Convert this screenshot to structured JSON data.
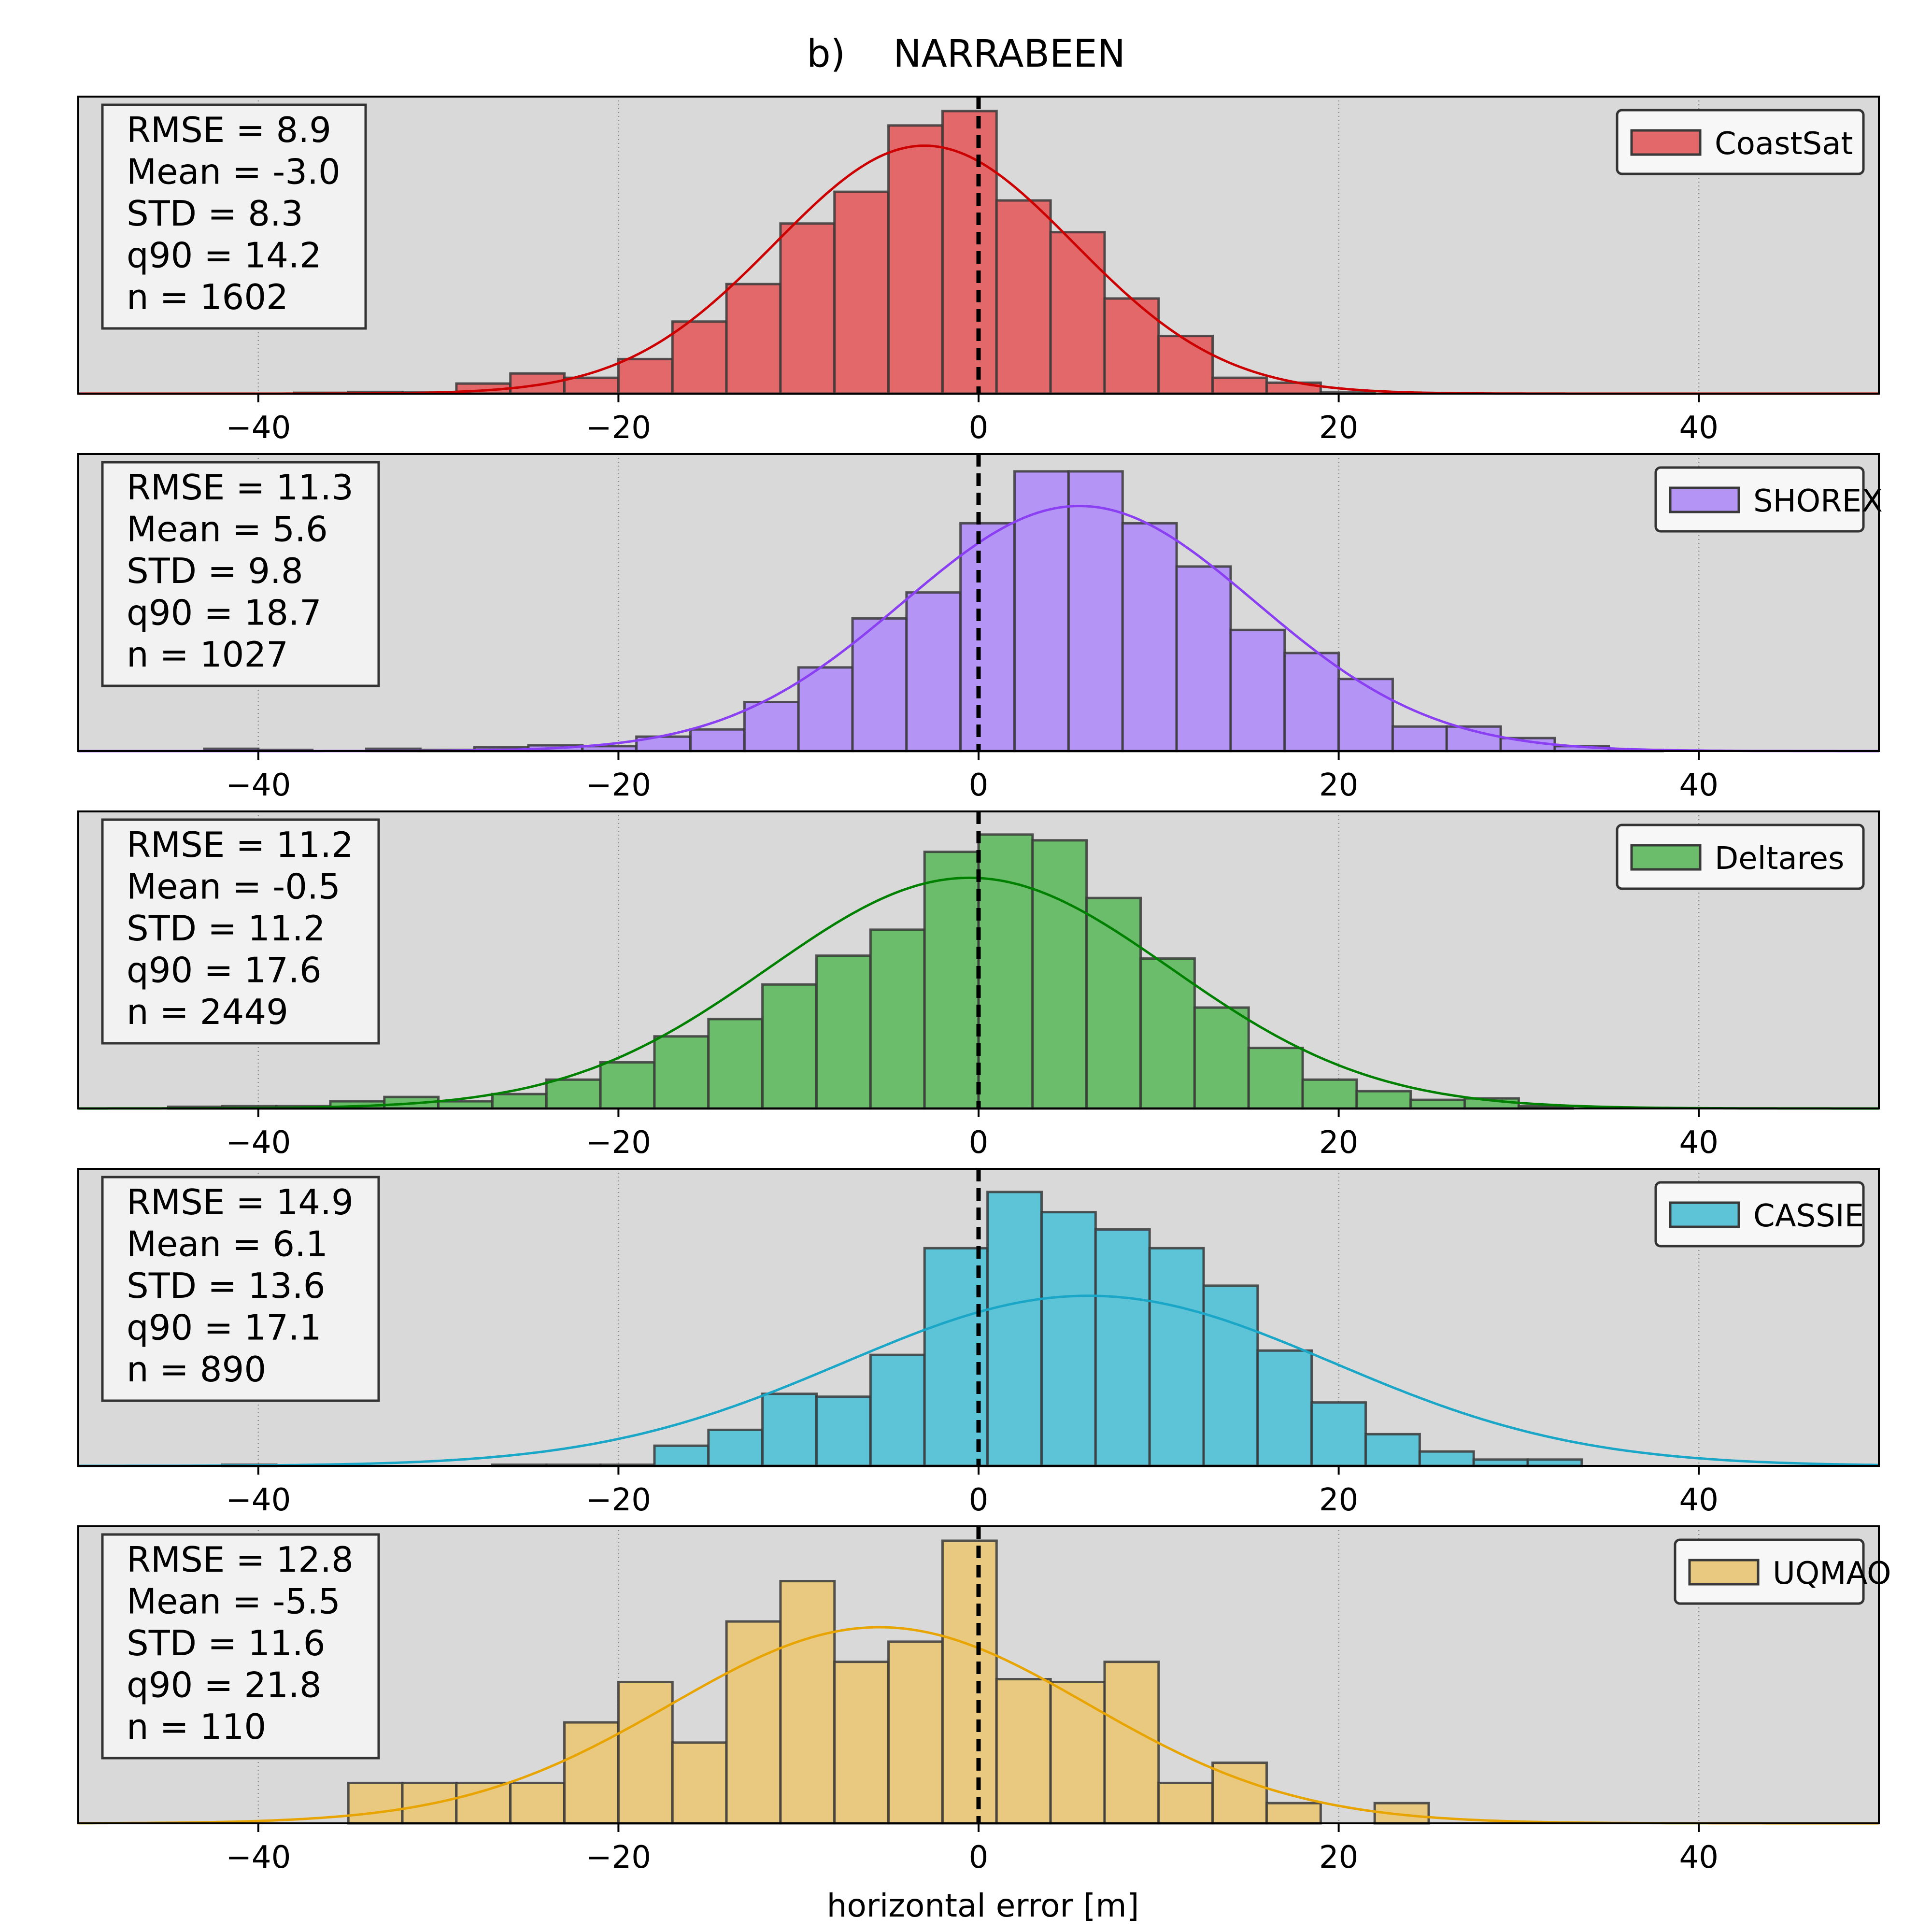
{
  "figure": {
    "title": "b)    NARRABEEN",
    "xlabel": "horizontal error [m]"
  },
  "chart_data": [
    {
      "type": "bar",
      "name": "CoastSat",
      "color": "#d62728",
      "fit_color": "#cc0000",
      "xlim": [
        -50,
        50
      ],
      "xticks": [
        -40,
        -20,
        0,
        20,
        40
      ],
      "xtick_labels": [
        "−40",
        "−20",
        "0",
        "20",
        "40"
      ],
      "grid_x": [
        -40,
        -20,
        20,
        40
      ],
      "grid": true,
      "vline_x": 0,
      "legend_position": "top-right",
      "stats": [
        "RMSE = 8.9",
        "Mean = -3.0",
        "STD = 8.3",
        "q90 = 14.2",
        "n = 1602"
      ],
      "fit": {
        "mean": -3.0,
        "std": 8.3,
        "peak": 0.86
      },
      "bins": [
        {
          "x0": -38,
          "x1": -35,
          "h": 0.003
        },
        {
          "x0": -35,
          "x1": -32,
          "h": 0.006
        },
        {
          "x0": -32,
          "x1": -29,
          "h": 0.004
        },
        {
          "x0": -29,
          "x1": -26,
          "h": 0.035
        },
        {
          "x0": -26,
          "x1": -23,
          "h": 0.07
        },
        {
          "x0": -23,
          "x1": -20,
          "h": 0.055
        },
        {
          "x0": -20,
          "x1": -17,
          "h": 0.12
        },
        {
          "x0": -17,
          "x1": -14,
          "h": 0.25
        },
        {
          "x0": -14,
          "x1": -11,
          "h": 0.38
        },
        {
          "x0": -11,
          "x1": -8,
          "h": 0.59
        },
        {
          "x0": -8,
          "x1": -5,
          "h": 0.7
        },
        {
          "x0": -5,
          "x1": -2,
          "h": 0.93
        },
        {
          "x0": -2,
          "x1": 1,
          "h": 0.98
        },
        {
          "x0": 1,
          "x1": 4,
          "h": 0.67
        },
        {
          "x0": 4,
          "x1": 7,
          "h": 0.56
        },
        {
          "x0": 7,
          "x1": 10,
          "h": 0.33
        },
        {
          "x0": 10,
          "x1": 13,
          "h": 0.2
        },
        {
          "x0": 13,
          "x1": 16,
          "h": 0.055
        },
        {
          "x0": 16,
          "x1": 19,
          "h": 0.038
        },
        {
          "x0": 19,
          "x1": 22,
          "h": 0.004
        }
      ]
    },
    {
      "type": "bar",
      "name": "SHOREX",
      "color": "#9467f0",
      "fit_color": "#8a3ff2",
      "xlim": [
        -50,
        50
      ],
      "xticks": [
        -40,
        -20,
        0,
        20,
        40
      ],
      "xtick_labels": [
        "−40",
        "−20",
        "0",
        "20",
        "40"
      ],
      "grid_x": [
        -40,
        -20,
        20,
        40
      ],
      "grid": true,
      "vline_x": 0,
      "legend_position": "top-right",
      "stats": [
        "RMSE = 11.3",
        "Mean = 5.6",
        "STD = 9.8",
        "q90 = 18.7",
        "n = 1027"
      ],
      "fit": {
        "mean": 5.6,
        "std": 9.8,
        "peak": 0.85
      },
      "bins": [
        {
          "x0": -43,
          "x1": -40,
          "h": 0.008
        },
        {
          "x0": -40,
          "x1": -37,
          "h": 0.004
        },
        {
          "x0": -34,
          "x1": -31,
          "h": 0.008
        },
        {
          "x0": -31,
          "x1": -28,
          "h": 0.004
        },
        {
          "x0": -28,
          "x1": -25,
          "h": 0.013
        },
        {
          "x0": -25,
          "x1": -22,
          "h": 0.02
        },
        {
          "x0": -22,
          "x1": -19,
          "h": 0.017
        },
        {
          "x0": -19,
          "x1": -16,
          "h": 0.05
        },
        {
          "x0": -16,
          "x1": -13,
          "h": 0.075
        },
        {
          "x0": -13,
          "x1": -10,
          "h": 0.17
        },
        {
          "x0": -10,
          "x1": -7,
          "h": 0.29
        },
        {
          "x0": -7,
          "x1": -4,
          "h": 0.46
        },
        {
          "x0": -4,
          "x1": -1,
          "h": 0.55
        },
        {
          "x0": -1,
          "x1": 2,
          "h": 0.79
        },
        {
          "x0": 2,
          "x1": 5,
          "h": 0.97
        },
        {
          "x0": 5,
          "x1": 8,
          "h": 0.97
        },
        {
          "x0": 8,
          "x1": 11,
          "h": 0.79
        },
        {
          "x0": 11,
          "x1": 14,
          "h": 0.64
        },
        {
          "x0": 14,
          "x1": 17,
          "h": 0.42
        },
        {
          "x0": 17,
          "x1": 20,
          "h": 0.34
        },
        {
          "x0": 20,
          "x1": 23,
          "h": 0.25
        },
        {
          "x0": 23,
          "x1": 26,
          "h": 0.085
        },
        {
          "x0": 26,
          "x1": 29,
          "h": 0.085
        },
        {
          "x0": 29,
          "x1": 32,
          "h": 0.045
        },
        {
          "x0": 32,
          "x1": 35,
          "h": 0.017
        },
        {
          "x0": 35,
          "x1": 38,
          "h": 0.004
        }
      ]
    },
    {
      "type": "bar",
      "name": "Deltares",
      "color": "#2ca02c",
      "fit_color": "#008000",
      "xlim": [
        -50,
        50
      ],
      "xticks": [
        -40,
        -20,
        0,
        20,
        40
      ],
      "xtick_labels": [
        "−40",
        "−20",
        "0",
        "20",
        "40"
      ],
      "grid_x": [
        -40,
        -20,
        20,
        40
      ],
      "grid": true,
      "vline_x": 0,
      "legend_position": "top-right",
      "stats": [
        "RMSE = 11.2",
        "Mean = -0.5",
        "STD = 11.2",
        "q90 = 17.6",
        "n = 2449"
      ],
      "fit": {
        "mean": -0.5,
        "std": 11.2,
        "peak": 0.8
      },
      "bins": [
        {
          "x0": -45,
          "x1": -42,
          "h": 0.006
        },
        {
          "x0": -42,
          "x1": -39,
          "h": 0.008
        },
        {
          "x0": -39,
          "x1": -36,
          "h": 0.008
        },
        {
          "x0": -36,
          "x1": -33,
          "h": 0.025
        },
        {
          "x0": -33,
          "x1": -30,
          "h": 0.04
        },
        {
          "x0": -30,
          "x1": -27,
          "h": 0.025
        },
        {
          "x0": -27,
          "x1": -24,
          "h": 0.05
        },
        {
          "x0": -24,
          "x1": -21,
          "h": 0.1
        },
        {
          "x0": -21,
          "x1": -18,
          "h": 0.16
        },
        {
          "x0": -18,
          "x1": -15,
          "h": 0.25
        },
        {
          "x0": -15,
          "x1": -12,
          "h": 0.31
        },
        {
          "x0": -12,
          "x1": -9,
          "h": 0.43
        },
        {
          "x0": -9,
          "x1": -6,
          "h": 0.53
        },
        {
          "x0": -6,
          "x1": -3,
          "h": 0.62
        },
        {
          "x0": -3,
          "x1": 0,
          "h": 0.89
        },
        {
          "x0": 0,
          "x1": 3,
          "h": 0.95
        },
        {
          "x0": 3,
          "x1": 6,
          "h": 0.93
        },
        {
          "x0": 6,
          "x1": 9,
          "h": 0.73
        },
        {
          "x0": 9,
          "x1": 12,
          "h": 0.52
        },
        {
          "x0": 12,
          "x1": 15,
          "h": 0.35
        },
        {
          "x0": 15,
          "x1": 18,
          "h": 0.21
        },
        {
          "x0": 18,
          "x1": 21,
          "h": 0.1
        },
        {
          "x0": 21,
          "x1": 24,
          "h": 0.06
        },
        {
          "x0": 24,
          "x1": 27,
          "h": 0.03
        },
        {
          "x0": 27,
          "x1": 30,
          "h": 0.035
        },
        {
          "x0": 30,
          "x1": 33,
          "h": 0.008
        }
      ]
    },
    {
      "type": "bar",
      "name": "CASSIE",
      "color": "#17a9c4",
      "fit_color": "#1aa6c6",
      "xlim": [
        -50,
        50
      ],
      "xticks": [
        -40,
        -20,
        0,
        20,
        40
      ],
      "xtick_labels": [
        "−40",
        "−20",
        "0",
        "20",
        "40"
      ],
      "grid_x": [
        -40,
        -20,
        20,
        40
      ],
      "grid": true,
      "vline_x": 0,
      "legend_position": "top-right",
      "stats": [
        "RMSE = 14.9",
        "Mean = 6.1",
        "STD = 13.6",
        "q90 = 17.1",
        "n = 890"
      ],
      "fit": {
        "mean": 6.1,
        "std": 13.6,
        "peak": 0.59
      },
      "bins": [
        {
          "x0": -42,
          "x1": -39,
          "h": 0.004
        },
        {
          "x0": -27,
          "x1": -24,
          "h": 0.004
        },
        {
          "x0": -24,
          "x1": -21,
          "h": 0.004
        },
        {
          "x0": -21,
          "x1": -18,
          "h": 0.004
        },
        {
          "x0": -18,
          "x1": -15,
          "h": 0.07
        },
        {
          "x0": -15,
          "x1": -12,
          "h": 0.125
        },
        {
          "x0": -12,
          "x1": -9,
          "h": 0.25
        },
        {
          "x0": -9,
          "x1": -6,
          "h": 0.24
        },
        {
          "x0": -6,
          "x1": -3,
          "h": 0.385
        },
        {
          "x0": -3,
          "x1": 0.5,
          "h": 0.755
        },
        {
          "x0": 0.5,
          "x1": 3.5,
          "h": 0.95
        },
        {
          "x0": 3.5,
          "x1": 6.5,
          "h": 0.88
        },
        {
          "x0": 6.5,
          "x1": 9.5,
          "h": 0.82
        },
        {
          "x0": 9.5,
          "x1": 12.5,
          "h": 0.755
        },
        {
          "x0": 12.5,
          "x1": 15.5,
          "h": 0.625
        },
        {
          "x0": 15.5,
          "x1": 18.5,
          "h": 0.4
        },
        {
          "x0": 18.5,
          "x1": 21.5,
          "h": 0.22
        },
        {
          "x0": 21.5,
          "x1": 24.5,
          "h": 0.11
        },
        {
          "x0": 24.5,
          "x1": 27.5,
          "h": 0.05
        },
        {
          "x0": 27.5,
          "x1": 30.5,
          "h": 0.022
        },
        {
          "x0": 30.5,
          "x1": 33.5,
          "h": 0.022
        }
      ]
    },
    {
      "type": "bar",
      "name": "UQMAO",
      "color": "#e0b14a",
      "fit_color": "#e8a400",
      "xlim": [
        -50,
        50
      ],
      "xticks": [
        -40,
        -20,
        0,
        20,
        40
      ],
      "xtick_labels": [
        "−40",
        "−20",
        "0",
        "20",
        "40"
      ],
      "grid_x": [
        -40,
        -20,
        20,
        40
      ],
      "grid": true,
      "vline_x": 0,
      "legend_position": "top-right",
      "stats": [
        "RMSE = 12.8",
        "Mean = -5.5",
        "STD = 11.6",
        "q90 = 21.8",
        "n = 110"
      ],
      "fit": {
        "mean": -5.5,
        "std": 11.6,
        "peak": 0.68
      },
      "bins": [
        {
          "x0": -35,
          "x1": -32,
          "h": 0.14
        },
        {
          "x0": -32,
          "x1": -29,
          "h": 0.14
        },
        {
          "x0": -29,
          "x1": -26,
          "h": 0.14
        },
        {
          "x0": -26,
          "x1": -23,
          "h": 0.14
        },
        {
          "x0": -23,
          "x1": -20,
          "h": 0.35
        },
        {
          "x0": -20,
          "x1": -17,
          "h": 0.49
        },
        {
          "x0": -17,
          "x1": -14,
          "h": 0.28
        },
        {
          "x0": -14,
          "x1": -11,
          "h": 0.7
        },
        {
          "x0": -11,
          "x1": -8,
          "h": 0.84
        },
        {
          "x0": -8,
          "x1": -5,
          "h": 0.56
        },
        {
          "x0": -5,
          "x1": -2,
          "h": 0.63
        },
        {
          "x0": -2,
          "x1": 1,
          "h": 0.98
        },
        {
          "x0": 1,
          "x1": 4,
          "h": 0.5
        },
        {
          "x0": 4,
          "x1": 7,
          "h": 0.49
        },
        {
          "x0": 7,
          "x1": 10,
          "h": 0.56
        },
        {
          "x0": 10,
          "x1": 13,
          "h": 0.14
        },
        {
          "x0": 13,
          "x1": 16,
          "h": 0.21
        },
        {
          "x0": 16,
          "x1": 19,
          "h": 0.07
        },
        {
          "x0": 22,
          "x1": 25,
          "h": 0.07
        }
      ]
    }
  ]
}
